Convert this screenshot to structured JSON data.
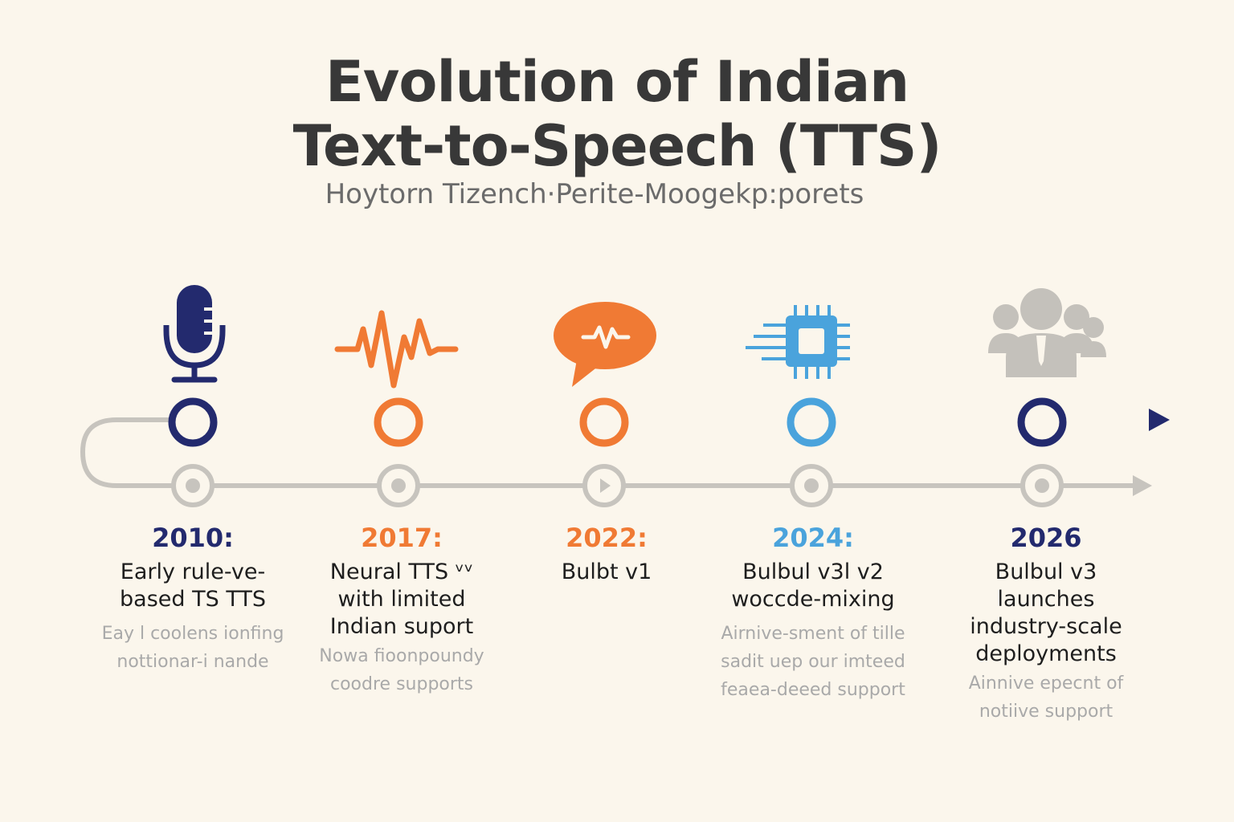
{
  "title_line1": "Evolution of Indian",
  "title_line2": "Text-to-Speech (TTS)",
  "subtitle": "Hoytorn Tizench·Perite-Moogekp:porets",
  "colors": {
    "navy": "#232a6e",
    "orange": "#f07a34",
    "blue": "#4aa3dc",
    "gray": "#c7c4be",
    "text": "#1e1e1e",
    "muted": "#a9a9a9"
  },
  "milestones": [
    {
      "year": "2010:",
      "icon": "microphone-icon",
      "color": "#232a6e",
      "lines": [
        "Early rule-ve-",
        "based TS TTS"
      ],
      "notes": [
        "Eay l coolens ionfing",
        "nottionar-i nande"
      ]
    },
    {
      "year": "2017:",
      "icon": "waveform-icon",
      "color": "#f07a34",
      "lines": [
        "Neural TTS ᵛᵛ",
        "with limited",
        "Indian suport"
      ],
      "notes": [
        "Nowa fioonpoundy",
        "coodre supports"
      ]
    },
    {
      "year": "2022:",
      "icon": "speech-bubble-icon",
      "color": "#f07a34",
      "lines": [
        "Bulbt v1"
      ],
      "notes": []
    },
    {
      "year": "2024:",
      "icon": "chip-icon",
      "color": "#4aa3dc",
      "lines": [
        "Bulbul v3l v2",
        "woccde-mixing"
      ],
      "notes": [
        "Airnive-sment of tille",
        "sadit uep our imteed",
        "feaea-deeed support"
      ]
    },
    {
      "year": "2026",
      "icon": "people-icon",
      "color": "#232a6e",
      "lines": [
        "Bulbul v3",
        "launches",
        "industry-scale",
        "deployments"
      ],
      "notes": [
        "Ainnive epecnt of",
        "notiive support"
      ]
    }
  ]
}
